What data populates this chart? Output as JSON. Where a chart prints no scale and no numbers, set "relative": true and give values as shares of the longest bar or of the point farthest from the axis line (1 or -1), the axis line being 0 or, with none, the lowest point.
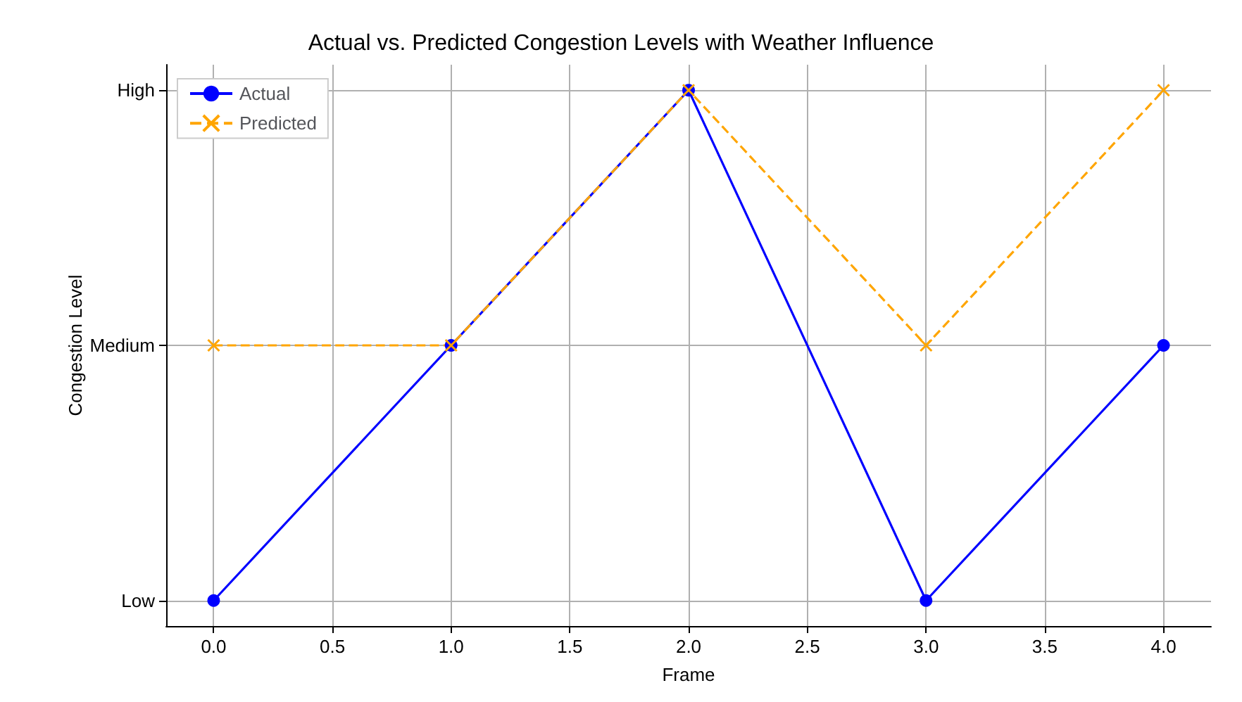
{
  "chart_data": {
    "type": "line",
    "title": "Actual vs. Predicted Congestion Levels with Weather Influence",
    "xlabel": "Frame",
    "ylabel": "Congestion Level",
    "x": [
      0,
      1,
      2,
      3,
      4
    ],
    "series": [
      {
        "name": "Actual",
        "color": "#0000ff",
        "values": [
          0,
          0.5,
          1,
          0,
          0.5
        ],
        "marker": "circle",
        "line_style": "solid"
      },
      {
        "name": "Predicted",
        "color": "#ffa500",
        "values": [
          0.5,
          0.5,
          1,
          0.5,
          1
        ],
        "marker": "cross",
        "line_style": "dashed"
      }
    ],
    "xlim": [
      -0.2,
      4.2
    ],
    "xticks": [
      {
        "value": 0,
        "label": "0.0"
      },
      {
        "value": 0.5,
        "label": "0.5"
      },
      {
        "value": 1,
        "label": "1.0"
      },
      {
        "value": 1.5,
        "label": "1.5"
      },
      {
        "value": 2,
        "label": "2.0"
      },
      {
        "value": 2.5,
        "label": "2.5"
      },
      {
        "value": 3,
        "label": "3.0"
      },
      {
        "value": 3.5,
        "label": "3.5"
      },
      {
        "value": 4,
        "label": "4.0"
      }
    ],
    "relative": true,
    "annotations": [
      "Low",
      "Medium",
      "High"
    ],
    "grid": true,
    "legend": "top left"
  }
}
